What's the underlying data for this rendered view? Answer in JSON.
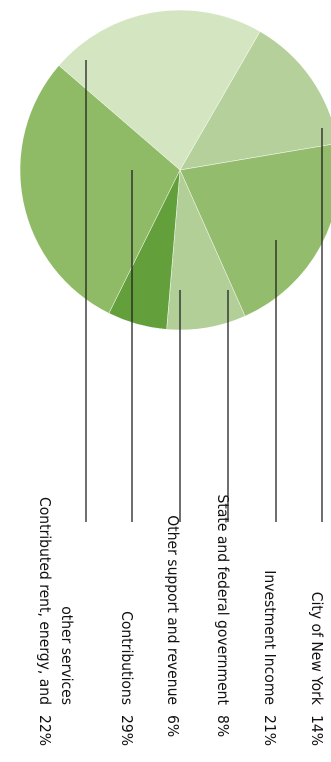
{
  "chart_data": {
    "type": "pie",
    "slices": [
      {
        "label": "City of New York",
        "value": 14,
        "display": "14%",
        "color": "#b5d09b"
      },
      {
        "label": "Investment Income",
        "value": 21,
        "display": "21%",
        "color": "#93bd6c"
      },
      {
        "label": "State and federal government",
        "value": 8,
        "display": "8%",
        "color": "#b1cf96"
      },
      {
        "label": "Other support and revenue",
        "value": 6,
        "display": "6%",
        "color": "#63a03c"
      },
      {
        "label": "Contributions",
        "value": 29,
        "display": "29%",
        "color": "#8fba66"
      },
      {
        "label": "Contributed rent, energy, and other services",
        "label_lines": [
          "Contributed rent, energy, and",
          "other services"
        ],
        "value": 22,
        "display": "22%",
        "color": "#d4e5c2"
      }
    ]
  }
}
